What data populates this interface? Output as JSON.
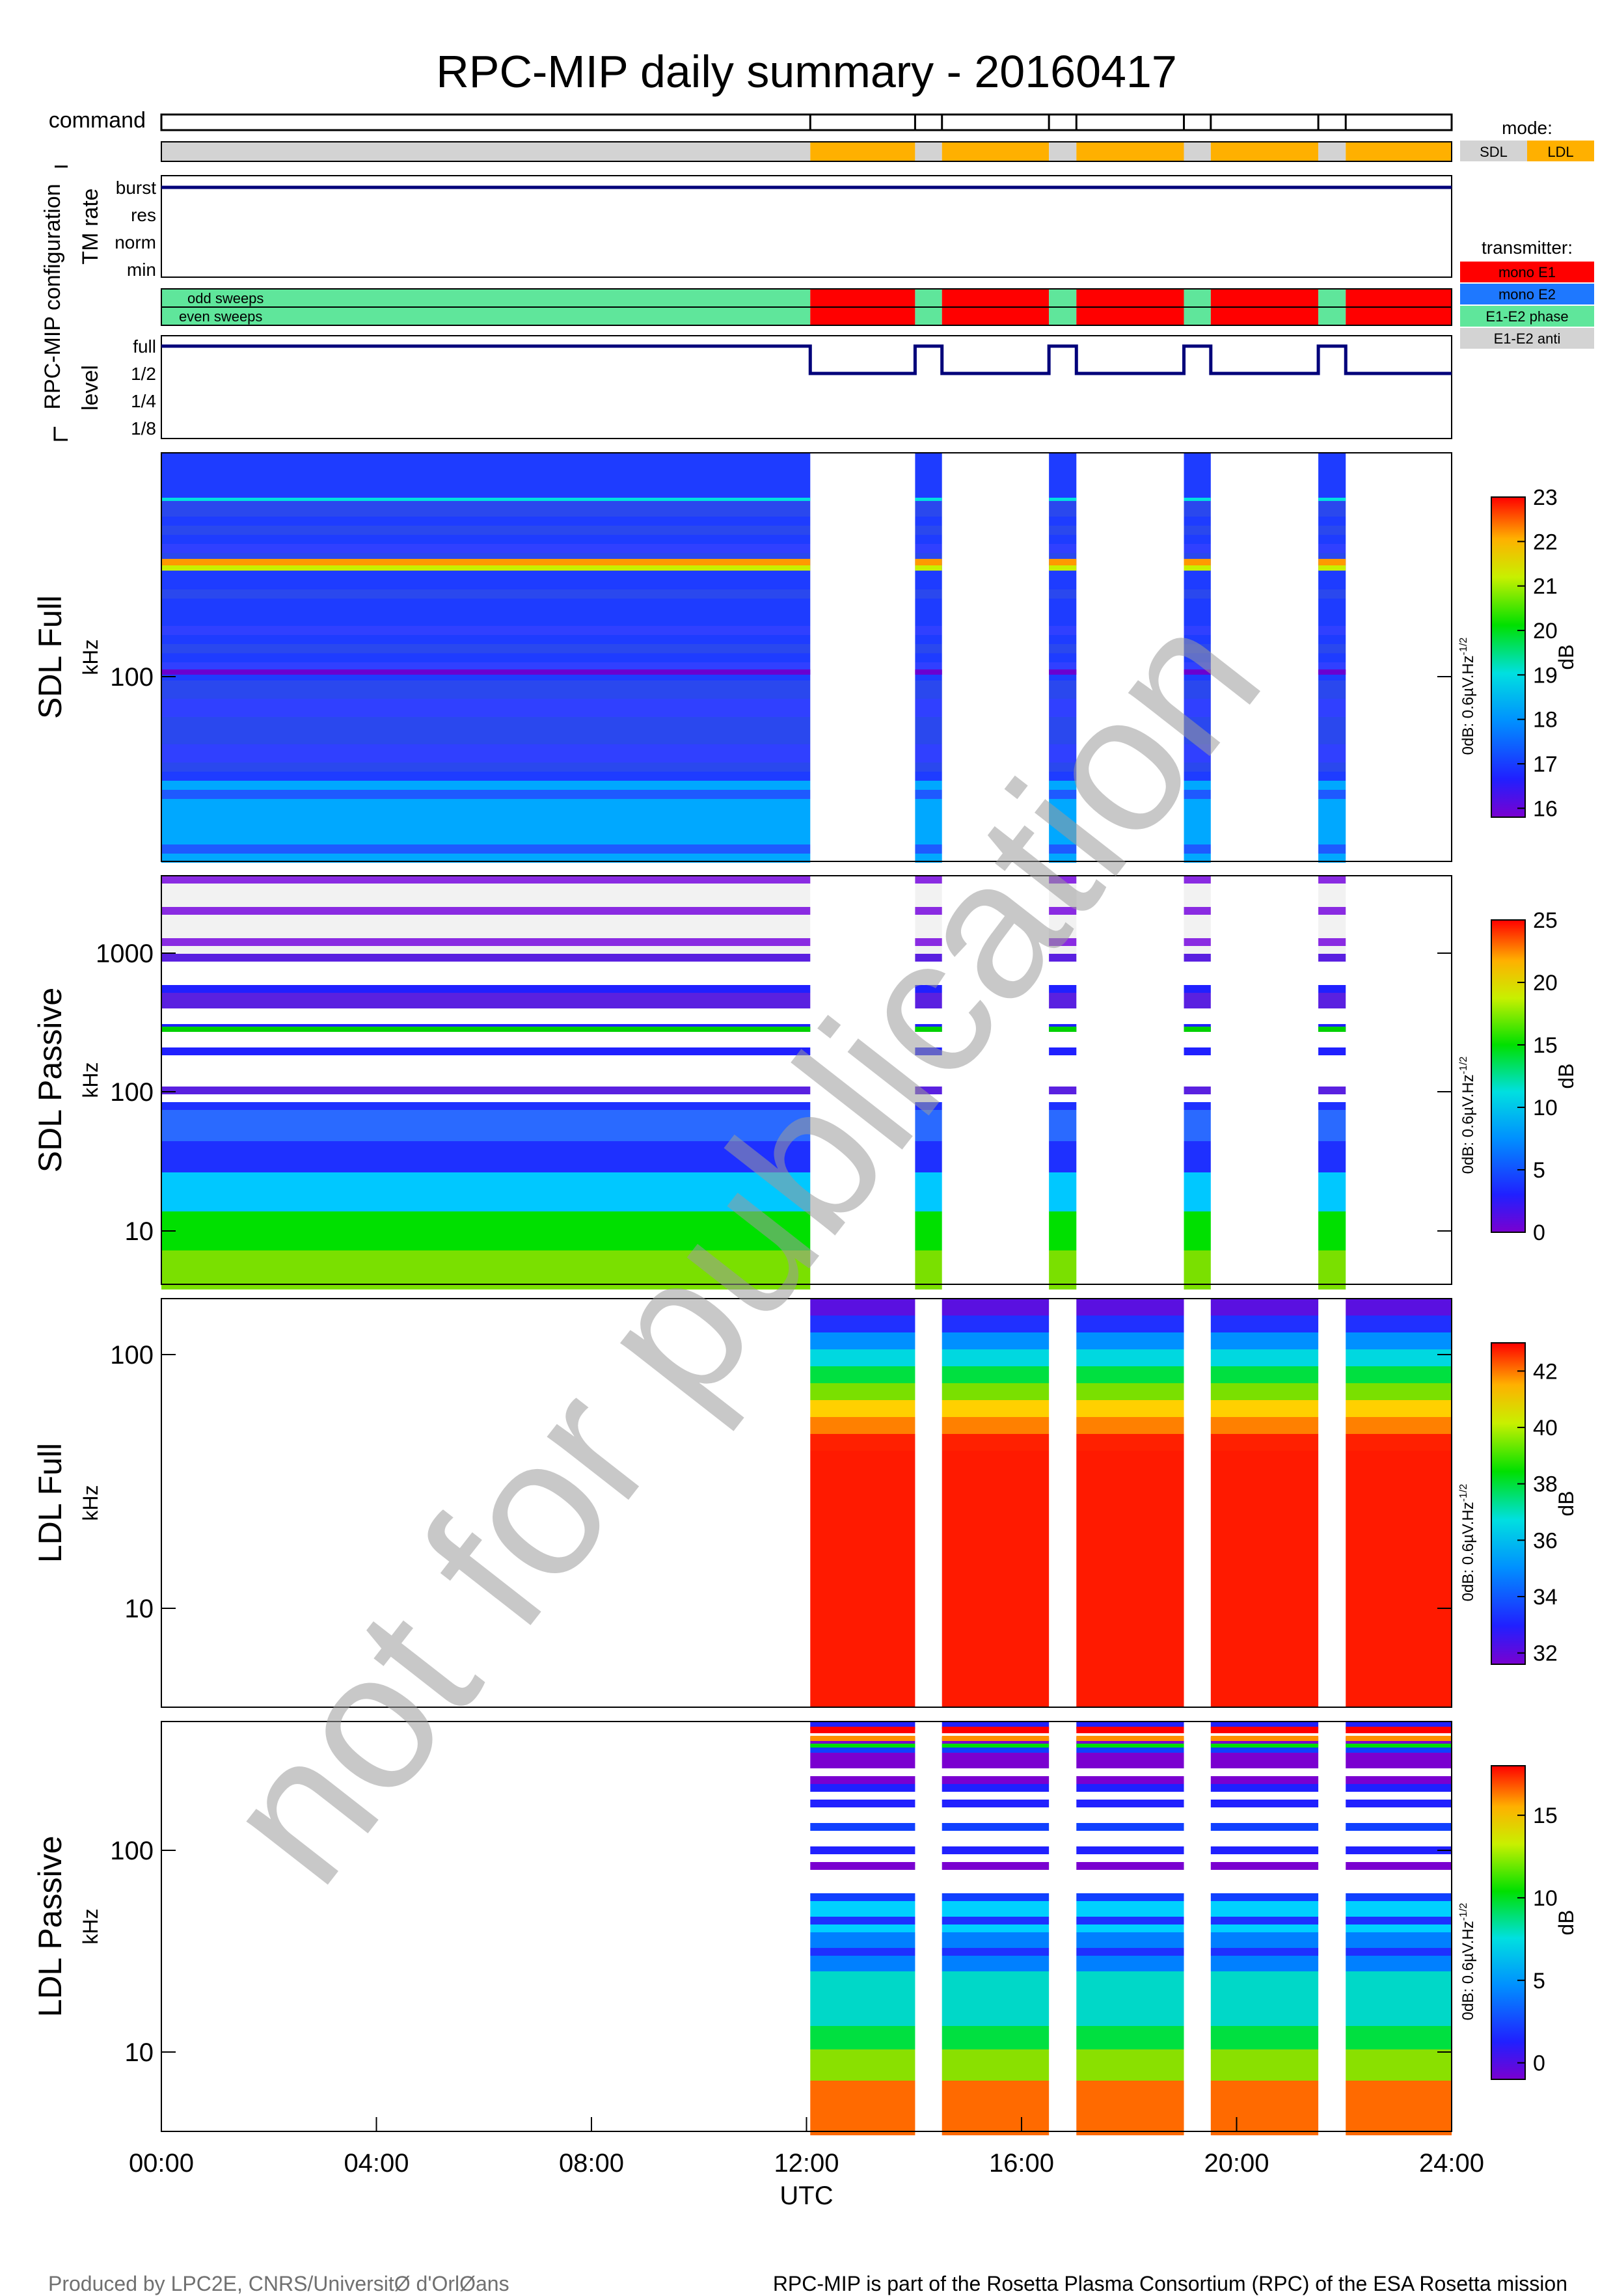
{
  "title": "RPC-MIP daily summary - 20160417",
  "footer": {
    "left": "Produced by LPC2E, CNRS/UniversitØ d'OrlØans",
    "right": "RPC-MIP is part of the Rosetta Plasma Consortium (RPC) of the ESA Rosetta mission"
  },
  "watermark": "not for publication",
  "config": {
    "group_label": "RPC-MIP configuration",
    "command_label": "command",
    "tm_rate_label": "TM rate",
    "tm_rate_levels": [
      "burst",
      "res",
      "norm",
      "min"
    ],
    "tm_rate_value": "burst",
    "sweep_labels": [
      "odd sweeps",
      "even sweeps"
    ],
    "level_label": "level",
    "level_levels": [
      "full",
      "1/2",
      "1/4",
      "1/8"
    ],
    "mode_legend": {
      "title": "mode:",
      "items": [
        {
          "label": "SDL",
          "color": "#d3d3d3"
        },
        {
          "label": "LDL",
          "color": "#ffb000"
        }
      ]
    },
    "transmitter_legend": {
      "title": "transmitter:",
      "items": [
        {
          "label": "mono E1",
          "color": "#ff0000"
        },
        {
          "label": "mono E2",
          "color": "#1e78ff"
        },
        {
          "label": "E1-E2 phase",
          "color": "#5fe69b"
        },
        {
          "label": "E1-E2 anti",
          "color": "#d3d3d3"
        }
      ]
    }
  },
  "chart_data": {
    "type": "heatmap",
    "x_axis": {
      "label": "UTC",
      "range_hours": [
        0,
        24
      ],
      "ticks": [
        "00:00",
        "04:00",
        "08:00",
        "12:00",
        "16:00",
        "20:00",
        "24:00"
      ],
      "tick_hours": [
        0,
        4,
        8,
        12,
        16,
        20,
        24
      ]
    },
    "timeline": [
      {
        "start": 0.0,
        "end": 12.07,
        "mode": "SDL",
        "transmitter": "E1-E2 phase",
        "level": "full"
      },
      {
        "start": 12.07,
        "end": 14.02,
        "mode": "LDL",
        "transmitter": "mono E1",
        "level": "1/2"
      },
      {
        "start": 14.02,
        "end": 14.52,
        "mode": "SDL",
        "transmitter": "E1-E2 phase",
        "level": "full"
      },
      {
        "start": 14.52,
        "end": 16.51,
        "mode": "LDL",
        "transmitter": "mono E1",
        "level": "1/2"
      },
      {
        "start": 16.51,
        "end": 17.02,
        "mode": "SDL",
        "transmitter": "E1-E2 phase",
        "level": "full"
      },
      {
        "start": 17.02,
        "end": 19.02,
        "mode": "LDL",
        "transmitter": "mono E1",
        "level": "1/2"
      },
      {
        "start": 19.02,
        "end": 19.52,
        "mode": "SDL",
        "transmitter": "E1-E2 phase",
        "level": "full"
      },
      {
        "start": 19.52,
        "end": 21.52,
        "mode": "LDL",
        "transmitter": "mono E1",
        "level": "1/2"
      },
      {
        "start": 21.52,
        "end": 22.03,
        "mode": "SDL",
        "transmitter": "E1-E2 phase",
        "level": "full"
      },
      {
        "start": 22.03,
        "end": 24.0,
        "mode": "LDL",
        "transmitter": "mono E1",
        "level": "1/2"
      }
    ],
    "panels": [
      {
        "name": "SDL Full",
        "ylabel": "kHz",
        "yticks": [
          "100"
        ],
        "mode": "SDL",
        "colorbar": {
          "unit": "dB",
          "ref": "0dB: 0.6µV.Hz",
          "ref_exp": "-1/2",
          "min": 15.8,
          "max": 23,
          "ticks": [
            16,
            17,
            18,
            19,
            20,
            21,
            22,
            23
          ]
        }
      },
      {
        "name": "SDL Passive",
        "ylabel": "kHz",
        "yticks": [
          "1000",
          "100",
          "10"
        ],
        "mode": "SDL",
        "colorbar": {
          "unit": "dB",
          "ref": "0dB: 0.6µV.Hz",
          "ref_exp": "-1/2",
          "min": 0,
          "max": 25,
          "ticks": [
            0,
            5,
            10,
            15,
            20,
            25
          ]
        }
      },
      {
        "name": "LDL Full",
        "ylabel": "kHz",
        "yticks": [
          "100",
          "10"
        ],
        "mode": "LDL",
        "colorbar": {
          "unit": "dB",
          "ref": "0dB: 0.6µV.Hz",
          "ref_exp": "-1/2",
          "min": 31.6,
          "max": 43,
          "ticks": [
            32,
            34,
            36,
            38,
            40,
            42
          ]
        }
      },
      {
        "name": "LDL Passive",
        "ylabel": "kHz",
        "yticks": [
          "100",
          "10"
        ],
        "mode": "LDL",
        "colorbar": {
          "unit": "dB",
          "ref": "0dB: 0.6µV.Hz",
          "ref_exp": "-1/2",
          "min": -1,
          "max": 18,
          "ticks": [
            0,
            5,
            10,
            15
          ]
        }
      }
    ]
  }
}
